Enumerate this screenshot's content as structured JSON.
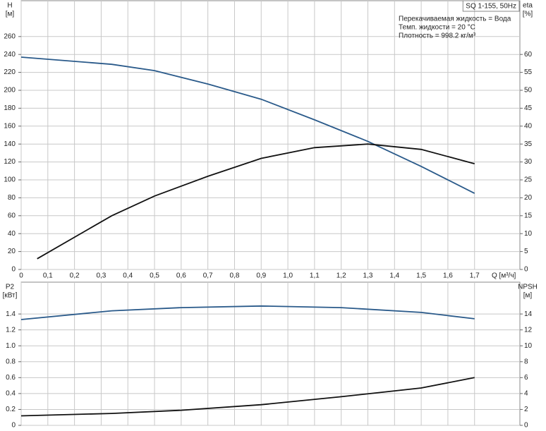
{
  "chart_data": [
    {
      "type": "line",
      "title": "SQ 1-155, 50Hz",
      "annotations": [
        "Перекачиваемая жидкость = Вода",
        "Темп. жидкости = 20 °C",
        "Плотность = 998.2 кг/м³"
      ],
      "x_label": "Q [м³/ч]",
      "y_label": "H",
      "y_unit": "[м]",
      "y2_label": "eta",
      "y2_unit": "[%]",
      "xlim": [
        0,
        1.87
      ],
      "xticks": [
        0,
        {
          "value": 0.1,
          "label": "0,1"
        },
        {
          "value": 0.2,
          "label": "0,2"
        },
        {
          "value": 0.3,
          "label": "0,3"
        },
        {
          "value": 0.4,
          "label": "0,4"
        },
        {
          "value": 0.5,
          "label": "0,5"
        },
        {
          "value": 0.6,
          "label": "0,6"
        },
        {
          "value": 0.7,
          "label": "0,7"
        },
        {
          "value": 0.8,
          "label": "0,8"
        },
        {
          "value": 0.9,
          "label": "0,9"
        },
        {
          "value": 1.0,
          "label": "1,0"
        },
        {
          "value": 1.1,
          "label": "1,1"
        },
        {
          "value": 1.2,
          "label": "1,2"
        },
        {
          "value": 1.3,
          "label": "1,3"
        },
        {
          "value": 1.4,
          "label": "1,4"
        },
        {
          "value": 1.5,
          "label": "1,5"
        },
        {
          "value": 1.6,
          "label": "1,6"
        },
        {
          "value": 1.7,
          "label": "1,7"
        }
      ],
      "ylim": [
        0,
        300
      ],
      "yticks": [
        0,
        20,
        40,
        60,
        80,
        100,
        120,
        140,
        160,
        180,
        200,
        220,
        240,
        260
      ],
      "y2lim": [
        0,
        75
      ],
      "y2ticks": [
        0,
        5,
        10,
        15,
        20,
        25,
        30,
        35,
        40,
        45,
        50,
        55,
        60
      ],
      "grid": true,
      "series": [
        {
          "color": "#2a5a8a",
          "x": [
            0,
            0.34,
            0.5,
            0.7,
            0.9,
            1.1,
            1.3,
            1.5,
            1.7
          ],
          "values": [
            237,
            229,
            222,
            207,
            190,
            167,
            143,
            115,
            85
          ]
        },
        {
          "color": "#111111",
          "axis": "y2",
          "x": [
            0.06,
            0.34,
            0.5,
            0.7,
            0.9,
            1.1,
            1.3,
            1.5,
            1.7
          ],
          "values": [
            3,
            15,
            20.5,
            26,
            31,
            34,
            35,
            33.5,
            29.5
          ]
        }
      ]
    },
    {
      "type": "line",
      "y_label": "P2",
      "y_unit": "[кВт]",
      "y2_label": "NPSH",
      "y2_unit": "[м]",
      "xlim": [
        0,
        1.87
      ],
      "xticks": [
        0,
        0.1,
        0.2,
        0.3,
        0.4,
        0.5,
        0.6,
        0.7,
        0.8,
        0.9,
        1,
        1.1,
        1.2,
        1.3,
        1.4,
        1.5,
        1.6,
        1.7
      ],
      "ylim": [
        0,
        1.8
      ],
      "yticks": [
        0,
        0.2,
        0.4,
        0.6,
        0.8,
        {
          "value": 1.0,
          "label": "1.0"
        },
        1.2,
        1.4
      ],
      "y2lim": [
        0,
        18
      ],
      "y2ticks": [
        0,
        2,
        4,
        6,
        8,
        10,
        12,
        14
      ],
      "grid": true,
      "series": [
        {
          "color": "#2a5a8a",
          "x": [
            0,
            0.34,
            0.6,
            0.9,
            1.2,
            1.5,
            1.7
          ],
          "values": [
            1.33,
            1.44,
            1.48,
            1.5,
            1.48,
            1.42,
            1.34
          ]
        },
        {
          "color": "#111111",
          "axis": "y2",
          "x": [
            0,
            0.34,
            0.6,
            0.9,
            1.2,
            1.5,
            1.7
          ],
          "values": [
            1.2,
            1.5,
            1.9,
            2.6,
            3.6,
            4.7,
            6.0
          ]
        }
      ]
    }
  ]
}
